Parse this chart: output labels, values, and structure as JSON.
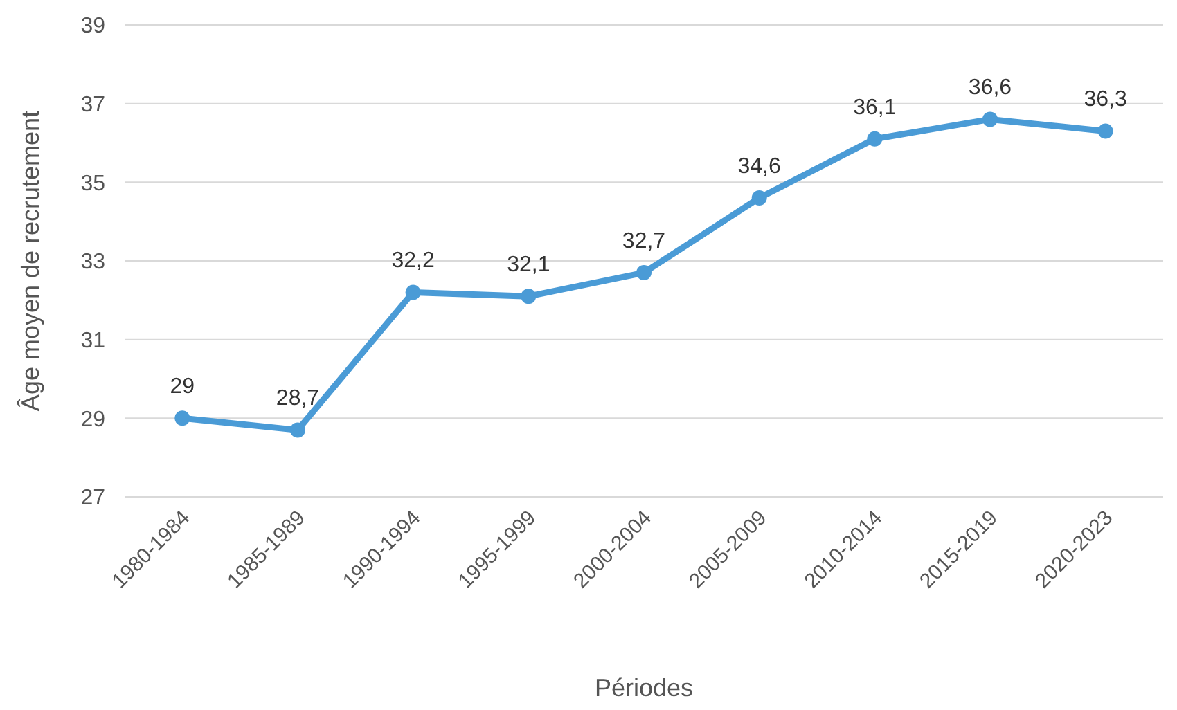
{
  "chart_data": {
    "type": "line",
    "xlabel": "Périodes",
    "ylabel": "Âge moyen de recrutement",
    "categories": [
      "1980-1984",
      "1985-1989",
      "1990-1994",
      "1995-1999",
      "2000-2004",
      "2005-2009",
      "2010-2014",
      "2015-2019",
      "2020-2023"
    ],
    "series": [
      {
        "color": "#4a9bd6",
        "values": [
          29,
          28.7,
          32.2,
          32.1,
          32.7,
          34.6,
          36.1,
          36.6,
          36.3
        ],
        "value_labels": [
          "29",
          "28,7",
          "32,2",
          "32,1",
          "32,7",
          "34,6",
          "36,1",
          "36,6",
          "36,3"
        ]
      }
    ],
    "ylim": [
      27,
      39
    ],
    "yticks": [
      27,
      29,
      31,
      33,
      35,
      37,
      39
    ],
    "grid": "y",
    "marker": "circle",
    "line_style": "solid"
  }
}
